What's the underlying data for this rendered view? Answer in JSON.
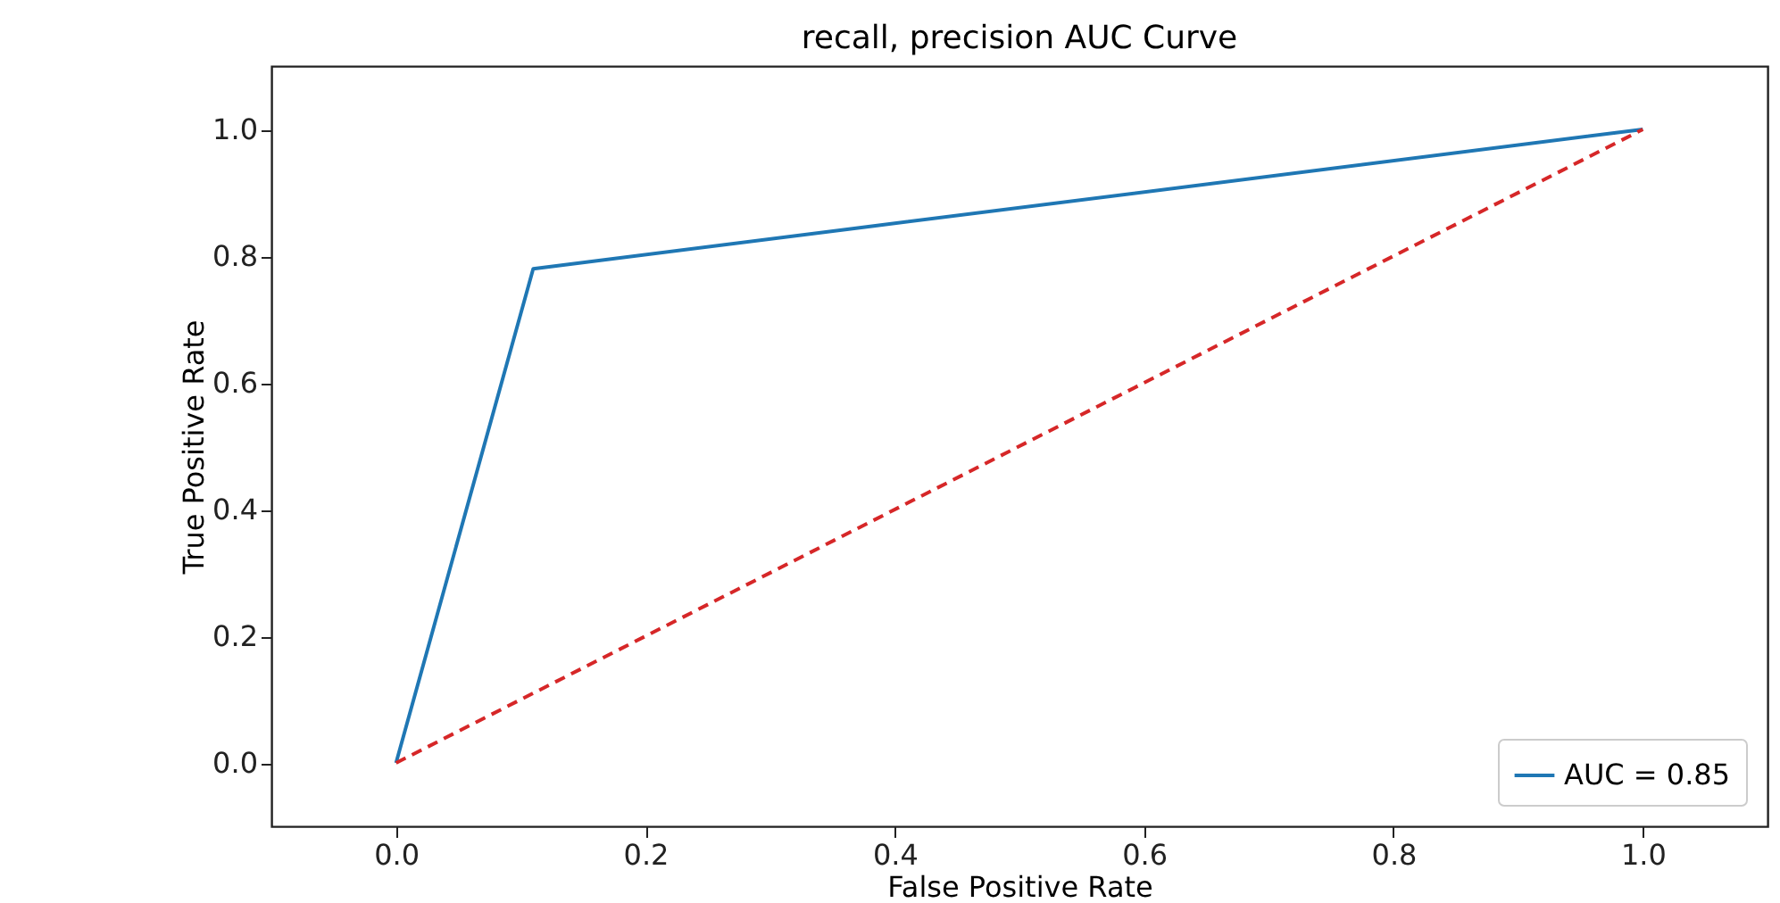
{
  "chart_data": {
    "type": "line",
    "title": "recall, precision AUC Curve",
    "xlabel": "False Positive Rate",
    "ylabel": "True Positive Rate",
    "xlim": [
      -0.1,
      1.1
    ],
    "ylim": [
      -0.1,
      1.1
    ],
    "xticks": [
      {
        "value": 0,
        "label": "0.0"
      },
      {
        "value": 0.2,
        "label": "0.2"
      },
      {
        "value": 0.4,
        "label": "0.4"
      },
      {
        "value": 0.6,
        "label": "0.6"
      },
      {
        "value": 0.8,
        "label": "0.8"
      },
      {
        "value": 1,
        "label": "1.0"
      }
    ],
    "yticks": [
      {
        "value": 0,
        "label": "0.0"
      },
      {
        "value": 0.2,
        "label": "0.2"
      },
      {
        "value": 0.4,
        "label": "0.4"
      },
      {
        "value": 0.6,
        "label": "0.6"
      },
      {
        "value": 0.8,
        "label": "0.8"
      },
      {
        "value": 1,
        "label": "1.0"
      }
    ],
    "legend": "bottom right",
    "series": [
      {
        "name": "AUC = 0.85",
        "color": "#1f77b4",
        "x": [
          0,
          0.11,
          1
        ],
        "values": [
          0,
          0.78,
          1
        ],
        "line_style": "solid"
      },
      {
        "color": "#d62728",
        "x": [
          0,
          1
        ],
        "values": [
          0,
          1
        ],
        "line_style": "dashed"
      }
    ]
  }
}
